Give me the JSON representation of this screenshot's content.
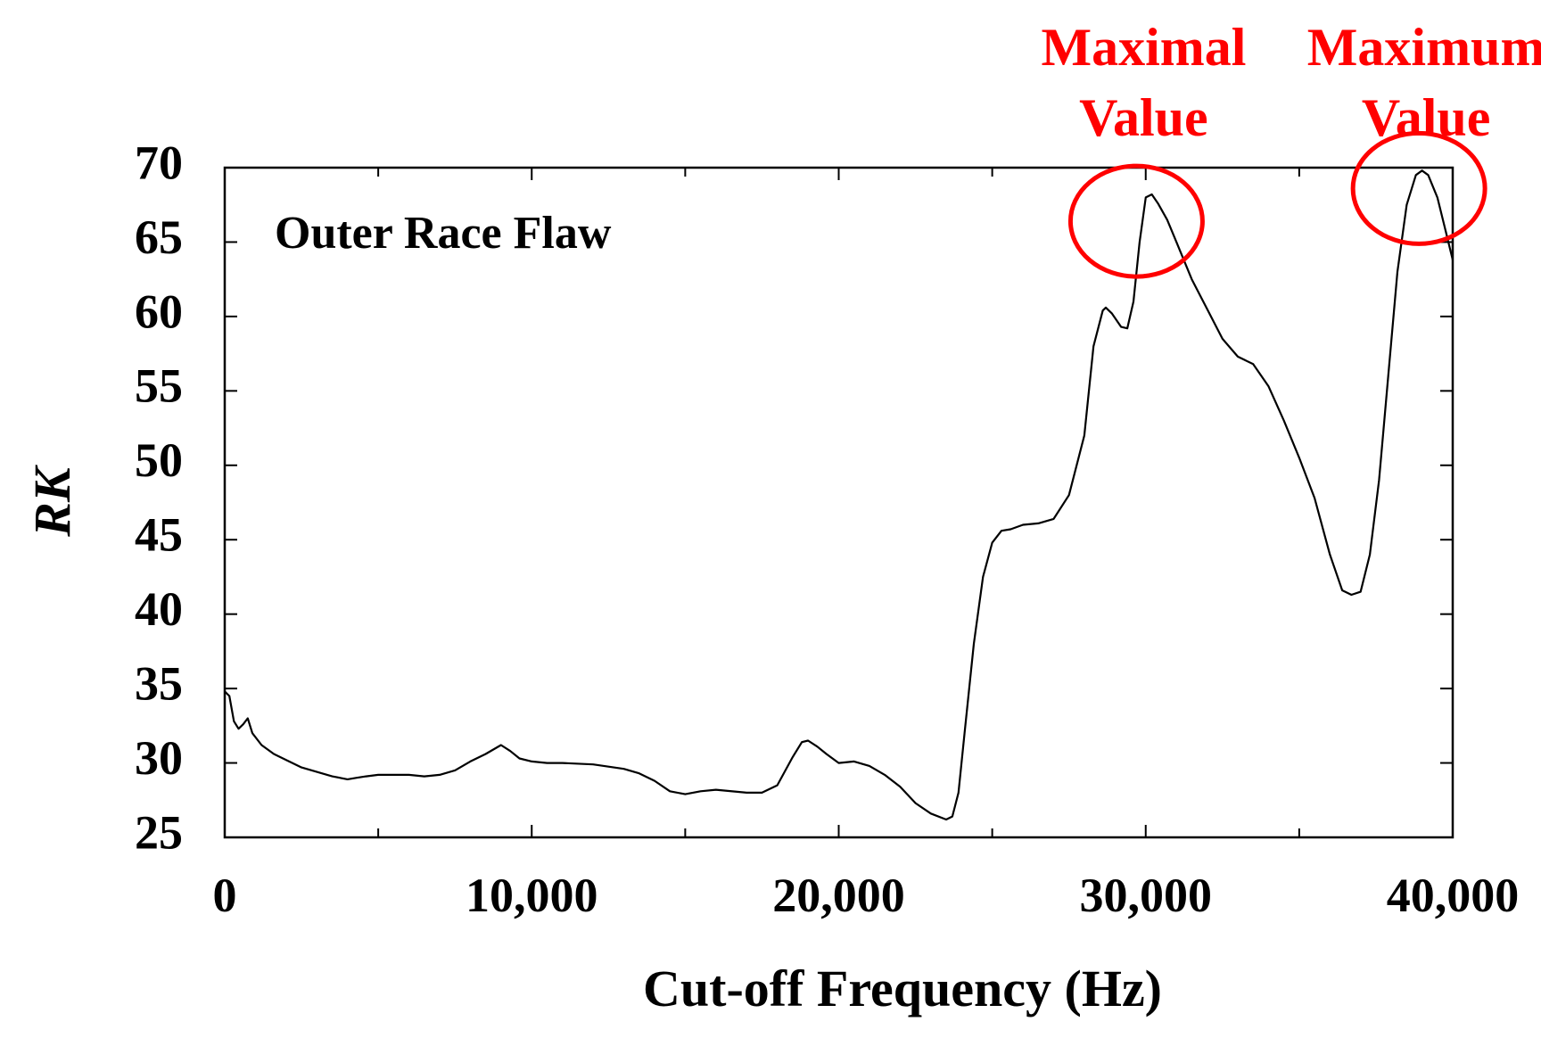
{
  "chart_data": {
    "type": "line",
    "title": "",
    "annotation": "Outer Race Flaw",
    "xlabel": "Cut-off Frequency (Hz)",
    "ylabel": "RK",
    "xlim": [
      0,
      40000
    ],
    "ylim": [
      25,
      70
    ],
    "x_ticks": [
      0,
      10000,
      20000,
      30000,
      40000
    ],
    "x_tick_labels": [
      "0",
      "10,000",
      "20,000",
      "30,000",
      "40,000"
    ],
    "y_ticks": [
      25,
      30,
      35,
      40,
      45,
      50,
      55,
      60,
      65,
      70
    ],
    "y_tick_labels": [
      "25",
      "30",
      "35",
      "40",
      "45",
      "50",
      "55",
      "60",
      "65",
      "70"
    ],
    "grid": false,
    "series_color": "#000000",
    "highlight_color": "#ff0000",
    "series": [
      {
        "x": [
          0,
          150,
          300,
          450,
          600,
          750,
          900,
          1200,
          1600,
          2000,
          2500,
          3000,
          3500,
          4000,
          4300,
          4600,
          5000,
          5500,
          6000,
          6500,
          7000,
          7500,
          8000,
          8500,
          9000,
          9300,
          9600,
          10000,
          10500,
          11000,
          12000,
          13000,
          13500,
          14000,
          14500,
          15000,
          15500,
          16000,
          17000,
          17500,
          18000,
          18500,
          18800,
          19000,
          19300,
          19600,
          20000,
          20500,
          21000,
          21500,
          22000,
          22500,
          23000,
          23500,
          23700,
          23900,
          24100,
          24400,
          24700,
          25000,
          25300,
          25600,
          26000,
          26500,
          27000,
          27500,
          28000,
          28300,
          28600,
          28700,
          28900,
          29200,
          29400,
          29600,
          29800,
          30000,
          30200,
          30400,
          30700,
          31000,
          31500,
          32000,
          32500,
          33000,
          33500,
          34000,
          34500,
          35000,
          35500,
          36000,
          36400,
          36700,
          37000,
          37300,
          37600,
          37900,
          38200,
          38500,
          38800,
          39000,
          39200,
          39500,
          39800,
          40000
        ],
        "y": [
          34.8,
          34.5,
          32.8,
          32.3,
          32.6,
          33.0,
          32.0,
          31.2,
          30.6,
          30.2,
          29.7,
          29.4,
          29.1,
          28.9,
          29.0,
          29.1,
          29.2,
          29.2,
          29.2,
          29.1,
          29.2,
          29.5,
          30.1,
          30.6,
          31.2,
          30.8,
          30.3,
          30.1,
          30.0,
          30.0,
          29.9,
          29.6,
          29.3,
          28.8,
          28.1,
          27.9,
          28.1,
          28.2,
          28.0,
          28.0,
          28.5,
          30.4,
          31.4,
          31.5,
          31.1,
          30.6,
          30.0,
          30.1,
          29.8,
          29.2,
          28.4,
          27.3,
          26.6,
          26.2,
          26.4,
          28.0,
          32.0,
          38.0,
          42.5,
          44.8,
          45.6,
          45.7,
          46.0,
          46.1,
          46.4,
          48.0,
          52.0,
          58.0,
          60.4,
          60.6,
          60.2,
          59.3,
          59.2,
          61.0,
          65.0,
          68.0,
          68.2,
          67.6,
          66.5,
          65.0,
          62.5,
          60.5,
          58.5,
          57.3,
          56.8,
          55.3,
          53.0,
          50.5,
          47.8,
          44.0,
          41.6,
          41.3,
          41.5,
          44.0,
          49.0,
          56.0,
          63.0,
          67.5,
          69.5,
          69.8,
          69.5,
          68.0,
          65.5,
          63.8
        ]
      }
    ],
    "highlights": [
      {
        "label_line1": "Maximal",
        "label_line2": "Value",
        "x": 29700,
        "y": 66.4
      },
      {
        "label_line1": "Maximum",
        "label_line2": "Value",
        "x": 38900,
        "y": 68.6
      }
    ]
  }
}
